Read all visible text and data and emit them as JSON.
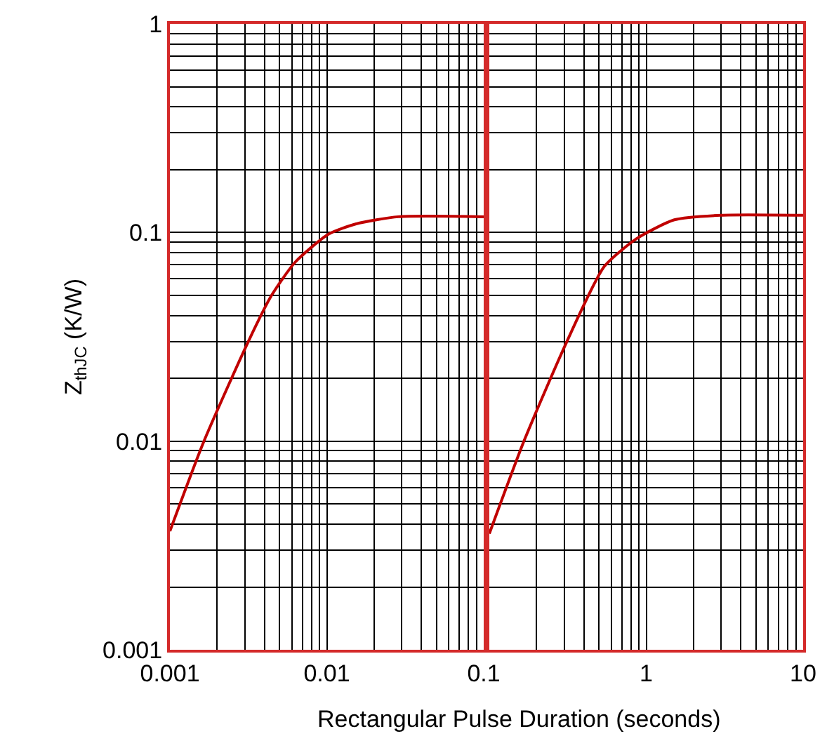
{
  "chart_data": [
    {
      "type": "line",
      "ylabel": "Z$_{thJC}$ (K/W)",
      "log": "xy",
      "grid": true,
      "tick_labels": "xy",
      "line_style": "solid",
      "marker": "none",
      "xlim": [
        0.001,
        0.1
      ],
      "ylim": [
        0.001,
        1
      ],
      "xticks": [
        0.001,
        {
          "value": 0.002,
          "label": null
        },
        {
          "value": 0.003,
          "label": null
        },
        {
          "value": 0.004,
          "label": null
        },
        {
          "value": 0.005,
          "label": null
        },
        {
          "value": 0.006,
          "label": null
        },
        {
          "value": 0.007,
          "label": null
        },
        {
          "value": 0.008,
          "label": null
        },
        {
          "value": 0.009,
          "label": null
        },
        0.01,
        {
          "value": 0.02,
          "label": null
        },
        {
          "value": 0.03,
          "label": null
        },
        {
          "value": 0.04,
          "label": null
        },
        {
          "value": 0.05,
          "label": null
        },
        {
          "value": 0.06,
          "label": null
        },
        {
          "value": 0.07,
          "label": null
        },
        {
          "value": 0.08,
          "label": null
        },
        {
          "value": 0.09,
          "label": null
        },
        0.1
      ],
      "yticks": [
        0.001,
        {
          "value": 0.002,
          "label": null
        },
        {
          "value": 0.003,
          "label": null
        },
        {
          "value": 0.004,
          "label": null
        },
        {
          "value": 0.005,
          "label": null
        },
        {
          "value": 0.006,
          "label": null
        },
        {
          "value": 0.007,
          "label": null
        },
        {
          "value": 0.008,
          "label": null
        },
        {
          "value": 0.009,
          "label": null
        },
        0.01,
        {
          "value": 0.02,
          "label": null
        },
        {
          "value": 0.03,
          "label": null
        },
        {
          "value": 0.04,
          "label": null
        },
        {
          "value": 0.05,
          "label": null
        },
        {
          "value": 0.06,
          "label": null
        },
        {
          "value": 0.07,
          "label": null
        },
        {
          "value": 0.08,
          "label": null
        },
        {
          "value": 0.09,
          "label": null
        },
        0.1,
        {
          "value": 0.2,
          "label": null
        },
        {
          "value": 0.3,
          "label": null
        },
        {
          "value": 0.4,
          "label": null
        },
        {
          "value": 0.5,
          "label": null
        },
        {
          "value": 0.6,
          "label": null
        },
        {
          "value": 0.7,
          "label": null
        },
        {
          "value": 0.8,
          "label": null
        },
        {
          "value": 0.9,
          "label": null
        },
        1
      ],
      "series": [
        {
          "color": "#c00000",
          "x": [
            0.001,
            0.00164,
            0.00316,
            0.00445,
            0.00628,
            0.0102,
            0.0154,
            0.0286,
            0.1
          ],
          "values": [
            0.0037,
            0.0099,
            0.03,
            0.05,
            0.072,
            0.098,
            0.11,
            0.119,
            0.119
          ]
        }
      ]
    },
    {
      "type": "line",
      "xlabel": "Rectangular Pulse Duration (seconds)",
      "log": "xy",
      "grid": true,
      "tick_labels": "x",
      "line_style": "solid",
      "marker": "none",
      "xlim": [
        0.1,
        10
      ],
      "ylim": [
        0.001,
        1
      ],
      "xticks": [
        {
          "value": 0.1,
          "label": null
        },
        {
          "value": 0.2,
          "label": null
        },
        {
          "value": 0.3,
          "label": null
        },
        {
          "value": 0.4,
          "label": null
        },
        {
          "value": 0.5,
          "label": null
        },
        {
          "value": 0.6,
          "label": null
        },
        {
          "value": 0.7,
          "label": null
        },
        {
          "value": 0.8,
          "label": null
        },
        {
          "value": 0.9,
          "label": null
        },
        1,
        {
          "value": 2,
          "label": null
        },
        {
          "value": 3,
          "label": null
        },
        {
          "value": 4,
          "label": null
        },
        {
          "value": 5,
          "label": null
        },
        {
          "value": 6,
          "label": null
        },
        {
          "value": 7,
          "label": null
        },
        {
          "value": 8,
          "label": null
        },
        {
          "value": 9,
          "label": null
        },
        10
      ],
      "yticks": [
        0.001,
        {
          "value": 0.002,
          "label": null
        },
        {
          "value": 0.003,
          "label": null
        },
        {
          "value": 0.004,
          "label": null
        },
        {
          "value": 0.005,
          "label": null
        },
        {
          "value": 0.006,
          "label": null
        },
        {
          "value": 0.007,
          "label": null
        },
        {
          "value": 0.008,
          "label": null
        },
        {
          "value": 0.009,
          "label": null
        },
        0.01,
        {
          "value": 0.02,
          "label": null
        },
        {
          "value": 0.03,
          "label": null
        },
        {
          "value": 0.04,
          "label": null
        },
        {
          "value": 0.05,
          "label": null
        },
        {
          "value": 0.06,
          "label": null
        },
        {
          "value": 0.07,
          "label": null
        },
        {
          "value": 0.08,
          "label": null
        },
        {
          "value": 0.09,
          "label": null
        },
        0.1,
        {
          "value": 0.2,
          "label": null
        },
        {
          "value": 0.3,
          "label": null
        },
        {
          "value": 0.4,
          "label": null
        },
        {
          "value": 0.5,
          "label": null
        },
        {
          "value": 0.6,
          "label": null
        },
        {
          "value": 0.7,
          "label": null
        },
        {
          "value": 0.8,
          "label": null
        },
        {
          "value": 0.9,
          "label": null
        },
        1
      ],
      "series": [
        {
          "color": "#c00000",
          "x": [
            0.1,
            0.168,
            0.312,
            0.54,
            0.871,
            1.51,
            2.99,
            10
          ],
          "values": [
            0.0036,
            0.0102,
            0.03,
            0.0687,
            0.0936,
            0.115,
            0.121,
            0.121
          ]
        }
      ]
    }
  ]
}
